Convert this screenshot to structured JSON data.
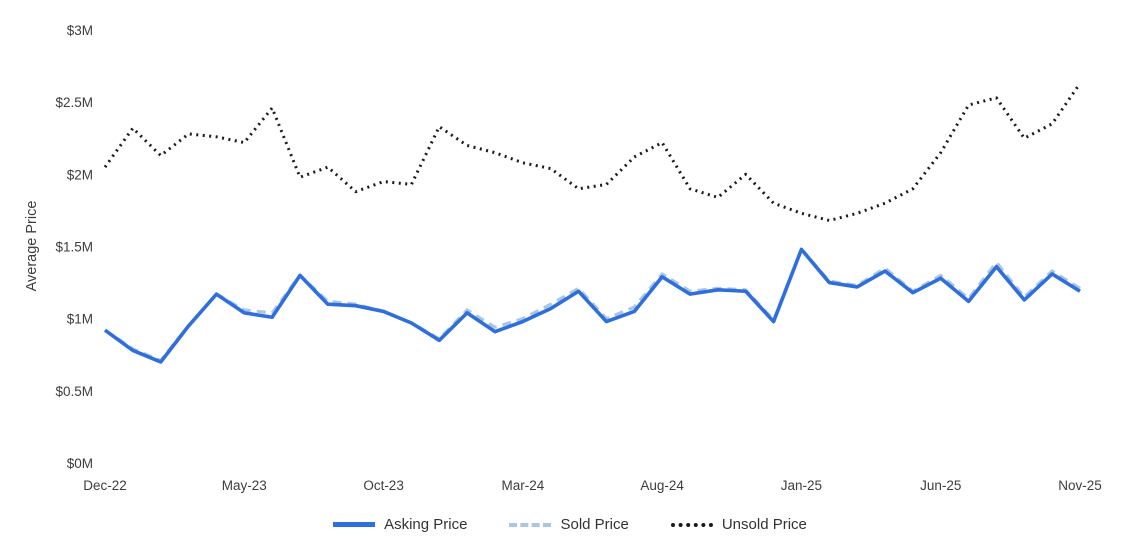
{
  "chart_data": {
    "type": "line",
    "title": "",
    "xlabel": "",
    "ylabel": "Average Price",
    "ylim": [
      0,
      3
    ],
    "grid": false,
    "legend_position": "bottom",
    "y_ticks": [
      {
        "value": 0,
        "label": "$0M"
      },
      {
        "value": 0.5,
        "label": "$0.5M"
      },
      {
        "value": 1,
        "label": "$1M"
      },
      {
        "value": 1.5,
        "label": "$1.5M"
      },
      {
        "value": 2,
        "label": "$2M"
      },
      {
        "value": 2.5,
        "label": "$2.5M"
      },
      {
        "value": 3,
        "label": "$3M"
      }
    ],
    "x_ticks": [
      {
        "index": 0,
        "label": "Dec-22"
      },
      {
        "index": 5,
        "label": "May-23"
      },
      {
        "index": 10,
        "label": "Oct-23"
      },
      {
        "index": 15,
        "label": "Mar-24"
      },
      {
        "index": 20,
        "label": "Aug-24"
      },
      {
        "index": 25,
        "label": "Jan-25"
      },
      {
        "index": 30,
        "label": "Jun-25"
      },
      {
        "index": 35,
        "label": "Nov-25"
      }
    ],
    "categories": [
      "Dec-22",
      "Jan-23",
      "Feb-23",
      "Mar-23",
      "Apr-23",
      "May-23",
      "Jun-23",
      "Jul-23",
      "Aug-23",
      "Sep-23",
      "Oct-23",
      "Nov-23",
      "Dec-23",
      "Jan-24",
      "Feb-24",
      "Mar-24",
      "Apr-24",
      "May-24",
      "Jun-24",
      "Jul-24",
      "Aug-24",
      "Sep-24",
      "Oct-24",
      "Nov-24",
      "Dec-24",
      "Jan-25",
      "Feb-25",
      "Mar-25",
      "Apr-25",
      "May-25",
      "Jun-25",
      "Jul-25",
      "Aug-25",
      "Sep-25",
      "Oct-25",
      "Nov-25"
    ],
    "value_unit": "millions USD",
    "series": [
      {
        "name": "Asking Price",
        "color": "#2e6fdd",
        "style": "solid",
        "width": 3.6,
        "values": [
          0.92,
          0.78,
          0.7,
          0.95,
          1.17,
          1.04,
          1.01,
          1.3,
          1.1,
          1.09,
          1.05,
          0.97,
          0.85,
          1.04,
          0.91,
          0.98,
          1.07,
          1.19,
          0.98,
          1.05,
          1.29,
          1.17,
          1.2,
          1.19,
          0.98,
          1.48,
          1.25,
          1.22,
          1.33,
          1.18,
          1.28,
          1.12,
          1.36,
          1.13,
          1.31,
          1.19
        ]
      },
      {
        "name": "Sold Price",
        "color": "#a9c6e5",
        "style": "dashed",
        "width": 3.2,
        "values": [
          0.92,
          0.79,
          0.71,
          0.95,
          1.17,
          1.06,
          1.04,
          1.3,
          1.12,
          1.1,
          1.05,
          0.97,
          0.86,
          1.06,
          0.94,
          1.0,
          1.1,
          1.21,
          1.0,
          1.08,
          1.31,
          1.19,
          1.21,
          1.2,
          0.99,
          1.48,
          1.26,
          1.23,
          1.35,
          1.19,
          1.3,
          1.14,
          1.39,
          1.15,
          1.33,
          1.21
        ]
      },
      {
        "name": "Unsold Price",
        "color": "#1a1a1a",
        "style": "dotted",
        "width": 3.0,
        "values": [
          2.05,
          2.32,
          2.13,
          2.28,
          2.26,
          2.22,
          2.46,
          1.98,
          2.05,
          1.88,
          1.95,
          1.93,
          2.33,
          2.2,
          2.15,
          2.08,
          2.04,
          1.9,
          1.93,
          2.12,
          2.22,
          1.9,
          1.84,
          2.0,
          1.8,
          1.73,
          1.68,
          1.73,
          1.8,
          1.9,
          2.15,
          2.48,
          2.53,
          2.25,
          2.35,
          2.63
        ]
      }
    ]
  }
}
